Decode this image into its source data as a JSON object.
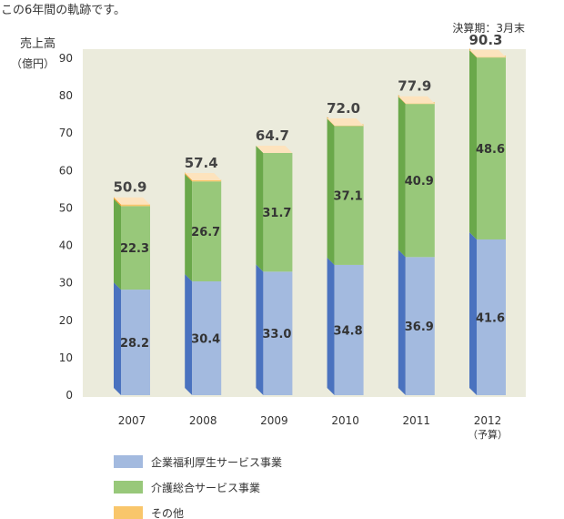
{
  "header": {
    "intro": "この6年間の軌跡です。",
    "fiscal_note": "決算期：3月末"
  },
  "chart_data": {
    "type": "bar",
    "stacked": true,
    "categories": [
      "2007",
      "2008",
      "2009",
      "2010",
      "2011",
      "2012"
    ],
    "category_notes": [
      "",
      "",
      "",
      "",
      "",
      "（予算）"
    ],
    "series": [
      {
        "name": "企業福利厚生サービス事業",
        "values": [
          28.2,
          30.4,
          33.0,
          34.8,
          36.9,
          41.6
        ],
        "color": "#a3badf",
        "side_color": "#4a72bf"
      },
      {
        "name": "介護総合サービス事業",
        "values": [
          22.3,
          26.7,
          31.7,
          37.1,
          40.9,
          48.6
        ],
        "color": "#98c87a",
        "side_color": "#6aa84a"
      },
      {
        "name": "その他",
        "values": [
          0.4,
          0.3,
          0.0,
          0.1,
          0.1,
          0.1
        ],
        "color": "#f9c66b",
        "side_color": "#f0a030"
      }
    ],
    "totals": [
      "50.9",
      "57.4",
      "64.7",
      "72.0",
      "77.9",
      "90.3"
    ],
    "segment_labels": [
      [
        "28.2",
        "30.4",
        "33.0",
        "34.8",
        "36.9",
        "41.6"
      ],
      [
        "22.3",
        "26.7",
        "31.7",
        "37.1",
        "40.9",
        "48.6"
      ]
    ],
    "ylabel_lines": [
      "売上高",
      "（億円）"
    ],
    "yticks": [
      0,
      10,
      20,
      30,
      40,
      50,
      60,
      70,
      80,
      90
    ],
    "ylim": [
      0,
      90
    ],
    "plot_background": "#ebebdc",
    "legend_position": "bottom-left"
  }
}
